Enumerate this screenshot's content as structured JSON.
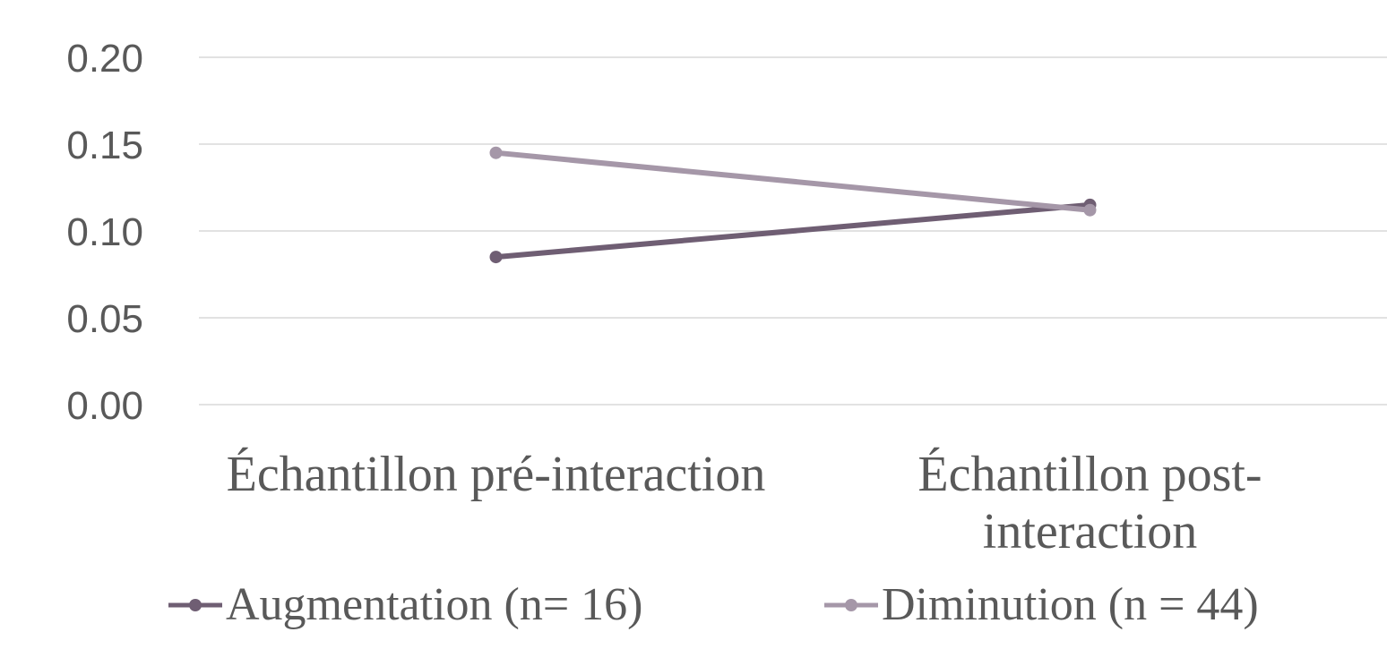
{
  "chart_data": {
    "type": "line",
    "title": "",
    "xlabel": "",
    "ylabel": "",
    "categories": [
      [
        "Échantillon pré-interaction"
      ],
      [
        "Échantillon post-",
        "interaction"
      ]
    ],
    "ylim": [
      0,
      0.2
    ],
    "yticks": [
      "0.00",
      "0.05",
      "0.10",
      "0.15",
      "0.20"
    ],
    "grid": true,
    "legend_position": "bottom",
    "series": [
      {
        "name": "Augmentation (n= 16)",
        "values": [
          0.085,
          0.115
        ],
        "color": "#6f5e73"
      },
      {
        "name": "Diminution (n = 44)",
        "values": [
          0.145,
          0.112
        ],
        "color": "#a597a8"
      }
    ]
  }
}
